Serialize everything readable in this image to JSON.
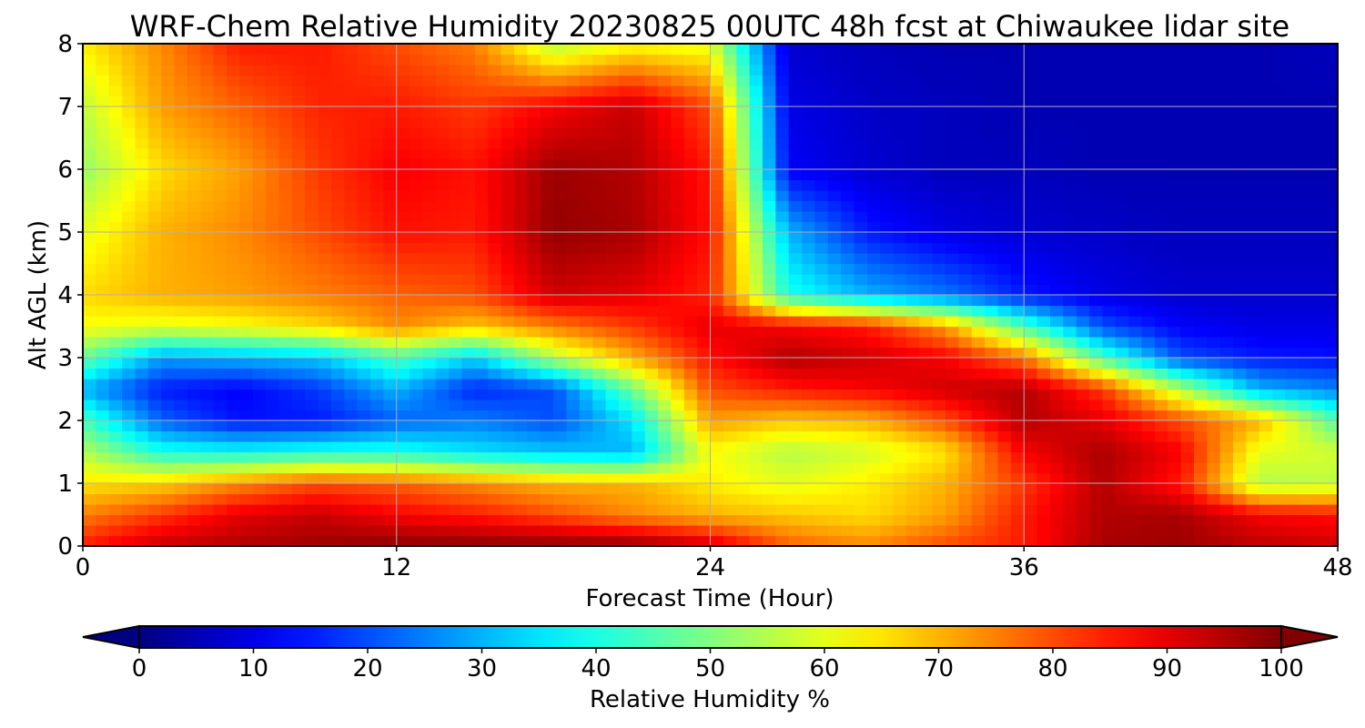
{
  "chart_data": {
    "type": "heatmap",
    "title": "WRF-Chem Relative Humidity 20230825 00UTC 48h fcst at Chiwaukee lidar site",
    "xlabel": "Forecast Time (Hour)",
    "ylabel": "Alt AGL (km)",
    "xlim": [
      0,
      48
    ],
    "ylim": [
      0,
      8
    ],
    "x_ticks": [
      0,
      12,
      24,
      36,
      48
    ],
    "x_tick_labels": [
      "0",
      "12",
      "24",
      "36",
      "48"
    ],
    "y_ticks": [
      0,
      1,
      2,
      3,
      4,
      5,
      6,
      7,
      8
    ],
    "y_tick_labels": [
      "0",
      "1",
      "2",
      "3",
      "4",
      "5",
      "6",
      "7",
      "8"
    ],
    "grid": true,
    "colormap": "jet",
    "colorbar": {
      "label": "Relative Humidity %",
      "range": [
        0,
        100
      ],
      "ticks": [
        0,
        10,
        20,
        30,
        40,
        50,
        60,
        70,
        80,
        90,
        100
      ],
      "tick_labels": [
        "0",
        "10",
        "20",
        "30",
        "40",
        "50",
        "60",
        "70",
        "80",
        "90",
        "100"
      ],
      "orientation": "horizontal",
      "extend": "both"
    },
    "x": [
      0,
      3,
      6,
      9,
      12,
      15,
      18,
      21,
      24,
      27,
      30,
      33,
      36,
      39,
      42,
      45,
      48
    ],
    "y": [
      0,
      0.5,
      1,
      1.5,
      2,
      2.5,
      3,
      3.5,
      4,
      5,
      6,
      7,
      8
    ],
    "z": [
      [
        85,
        93,
        95,
        97,
        99,
        99,
        99,
        99,
        92,
        78,
        74,
        80,
        85,
        96,
        97,
        94,
        92
      ],
      [
        75,
        82,
        90,
        93,
        88,
        85,
        80,
        74,
        70,
        68,
        66,
        72,
        85,
        95,
        96,
        88,
        86
      ],
      [
        65,
        67,
        74,
        80,
        78,
        74,
        70,
        70,
        64,
        60,
        64,
        70,
        82,
        95,
        85,
        55,
        56
      ],
      [
        55,
        40,
        38,
        40,
        40,
        35,
        32,
        30,
        62,
        55,
        58,
        65,
        88,
        96,
        88,
        60,
        58
      ],
      [
        45,
        22,
        14,
        15,
        22,
        25,
        20,
        35,
        72,
        68,
        70,
        80,
        95,
        90,
        80,
        70,
        45
      ],
      [
        30,
        15,
        12,
        18,
        30,
        16,
        20,
        48,
        80,
        85,
        88,
        92,
        95,
        82,
        55,
        30,
        25
      ],
      [
        48,
        28,
        30,
        32,
        45,
        33,
        55,
        70,
        86,
        95,
        92,
        88,
        76,
        45,
        20,
        15,
        14
      ],
      [
        62,
        60,
        62,
        66,
        74,
        68,
        75,
        82,
        90,
        88,
        85,
        72,
        45,
        20,
        12,
        10,
        10
      ],
      [
        66,
        70,
        72,
        75,
        78,
        80,
        92,
        90,
        84,
        40,
        30,
        24,
        15,
        10,
        8,
        8,
        8
      ],
      [
        60,
        70,
        74,
        80,
        86,
        85,
        98,
        96,
        86,
        30,
        15,
        10,
        8,
        7,
        6,
        6,
        6
      ],
      [
        52,
        66,
        72,
        82,
        88,
        86,
        97,
        95,
        85,
        12,
        8,
        6,
        6,
        5,
        5,
        5,
        5
      ],
      [
        56,
        72,
        78,
        84,
        85,
        82,
        88,
        93,
        80,
        10,
        7,
        6,
        5,
        5,
        5,
        5,
        5
      ],
      [
        64,
        74,
        85,
        85,
        80,
        75,
        55,
        62,
        60,
        8,
        6,
        5,
        5,
        5,
        5,
        5,
        6
      ]
    ]
  }
}
